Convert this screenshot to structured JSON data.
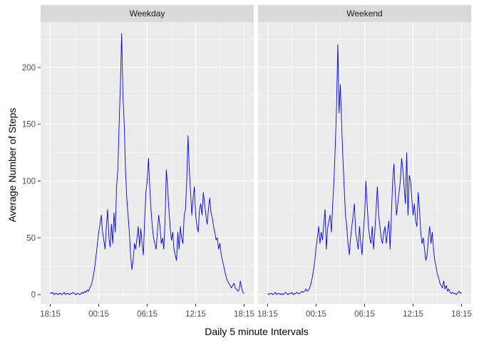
{
  "chart_data": {
    "type": "line",
    "xlabel": "Daily 5 minute Intervals",
    "ylabel": "Average Number of Steps",
    "x_tick_labels": [
      "18:15",
      "00:15",
      "06:15",
      "12:15",
      "18:15"
    ],
    "y_ticks": [
      0,
      50,
      100,
      150,
      200
    ],
    "ylim": [
      -8,
      240
    ],
    "grid": true,
    "line_color": "#0000ff",
    "facets": [
      {
        "label": "Weekday",
        "series": [
          {
            "values": [
              2,
              1,
              2,
              0,
              1,
              1,
              0,
              1,
              1,
              0,
              1,
              2,
              0,
              1,
              1,
              0,
              1,
              1,
              2,
              1,
              0,
              1,
              1,
              0,
              1,
              2,
              1,
              3,
              2,
              4,
              3,
              6,
              8,
              12,
              18,
              25,
              35,
              45,
              55,
              62,
              70,
              55,
              48,
              40,
              60,
              75,
              50,
              42,
              62,
              45,
              72,
              55,
              95,
              110,
              150,
              185,
              230,
              175,
              150,
              110,
              85,
              70,
              55,
              35,
              22,
              30,
              45,
              40,
              50,
              60,
              42,
              58,
              45,
              35,
              65,
              90,
              100,
              120,
              95,
              75,
              60,
              50,
              45,
              40,
              55,
              70,
              60,
              45,
              50,
              40,
              65,
              110,
              95,
              75,
              60,
              48,
              55,
              40,
              35,
              30,
              55,
              40,
              60,
              50,
              45,
              70,
              75,
              100,
              140,
              110,
              90,
              70,
              85,
              95,
              70,
              60,
              55,
              75,
              80,
              70,
              90,
              80,
              70,
              62,
              75,
              85,
              72,
              68,
              60,
              55,
              48,
              50,
              40,
              45,
              35,
              30,
              25,
              20,
              15,
              12,
              10,
              8,
              6,
              8,
              10,
              6,
              5,
              3,
              4,
              12,
              6,
              2,
              1
            ]
          }
        ]
      },
      {
        "label": "Weekend",
        "series": [
          {
            "values": [
              1,
              0,
              1,
              1,
              0,
              1,
              2,
              0,
              1,
              1,
              0,
              1,
              0,
              1,
              2,
              1,
              0,
              1,
              1,
              2,
              0,
              1,
              1,
              2,
              1,
              1,
              2,
              3,
              2,
              3,
              5,
              3,
              4,
              6,
              10,
              15,
              22,
              30,
              42,
              50,
              60,
              45,
              55,
              48,
              62,
              75,
              40,
              58,
              65,
              70,
              55,
              80,
              100,
              130,
              165,
              220,
              160,
              185,
              150,
              120,
              95,
              70,
              60,
              45,
              35,
              50,
              60,
              70,
              80,
              55,
              48,
              40,
              60,
              45,
              35,
              55,
              70,
              100,
              80,
              60,
              50,
              45,
              60,
              40,
              55,
              75,
              95,
              70,
              60,
              50,
              45,
              55,
              60,
              45,
              55,
              65,
              40,
              70,
              100,
              115,
              90,
              70,
              80,
              90,
              100,
              120,
              110,
              95,
              80,
              125,
              70,
              105,
              100,
              85,
              70,
              80,
              65,
              60,
              90,
              75,
              55,
              45,
              50,
              40,
              30,
              35,
              50,
              60,
              45,
              55,
              40,
              30,
              25,
              18,
              15,
              10,
              8,
              6,
              12,
              5,
              8,
              3,
              5,
              2,
              1,
              2,
              1,
              1,
              0,
              2,
              3,
              1,
              2
            ]
          }
        ]
      }
    ]
  }
}
